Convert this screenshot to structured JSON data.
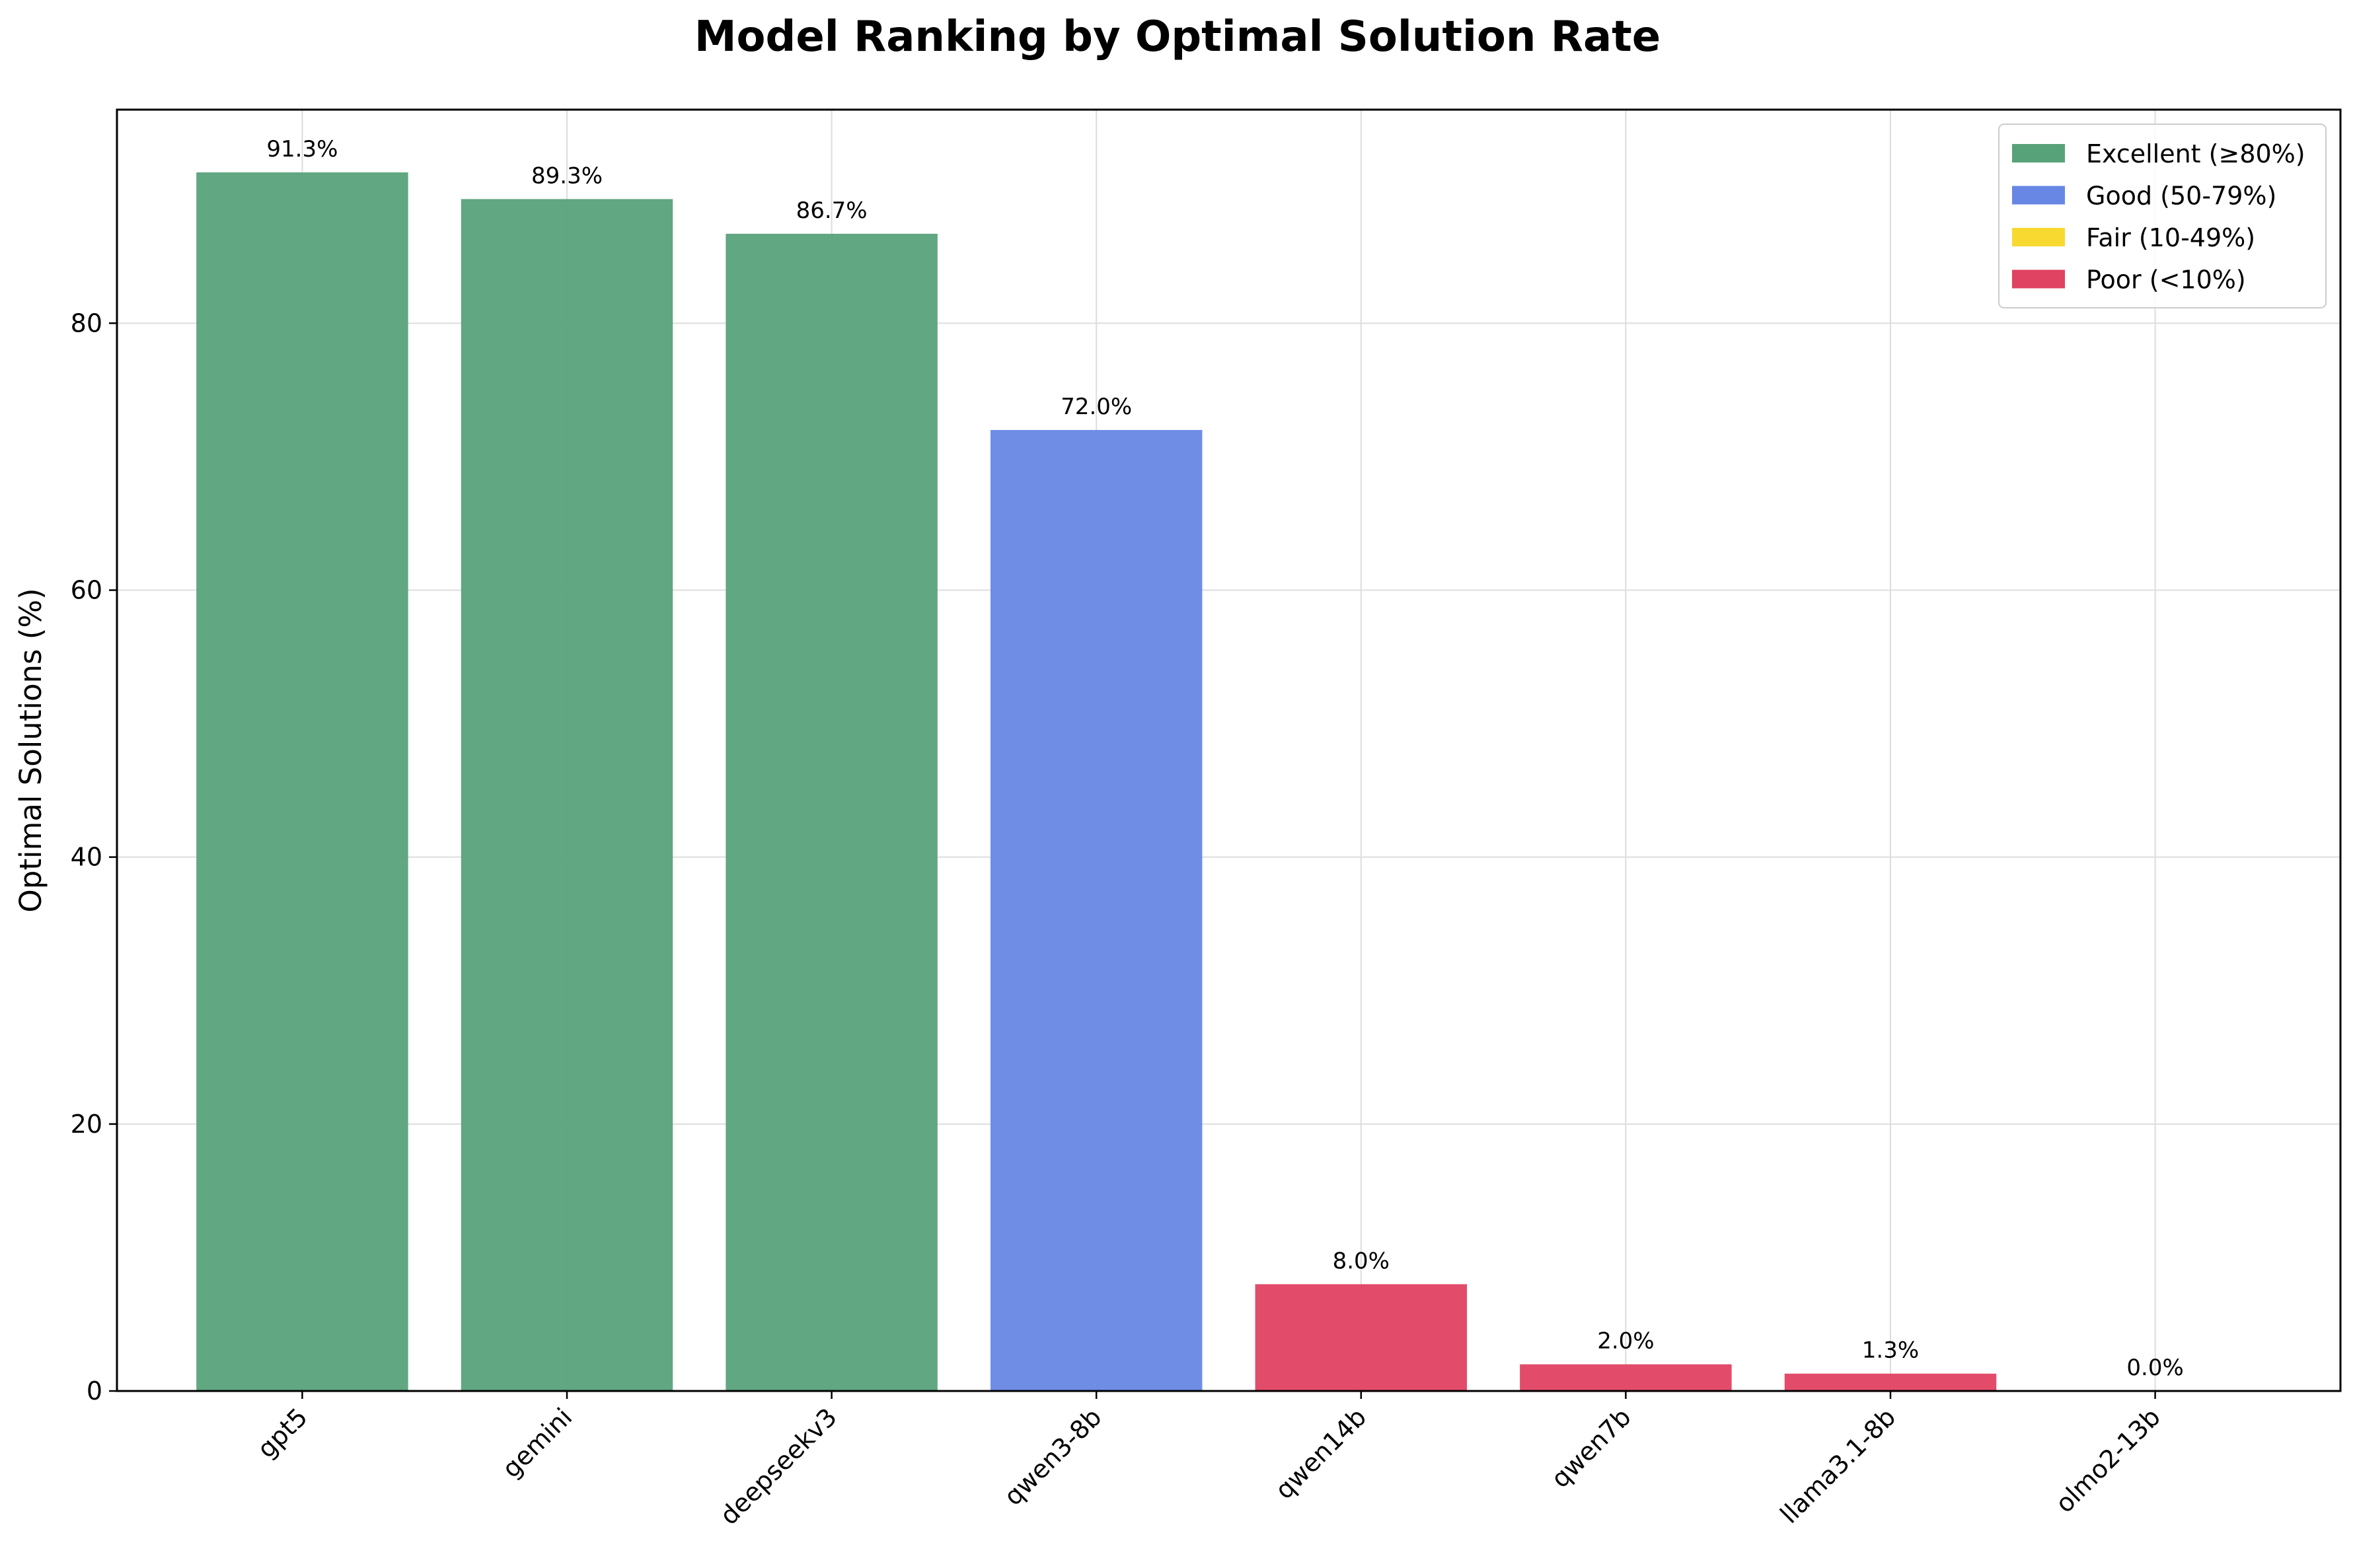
{
  "chart_data": {
    "type": "bar",
    "title": "Model Ranking by Optimal Solution Rate",
    "xlabel": "",
    "ylabel": "Optimal Solutions (%)",
    "ylim": [
      0,
      96
    ],
    "yticks": [
      0,
      20,
      40,
      60,
      80
    ],
    "grid": true,
    "legend_position": "top-right",
    "categories": [
      "gpt5",
      "gemini",
      "deepseekv3",
      "qwen3-8b",
      "qwen14b",
      "qwen7b",
      "llama3.1-8b",
      "olmo2-13b"
    ],
    "values": [
      91.3,
      89.3,
      86.7,
      72.0,
      8.0,
      2.0,
      1.3,
      0.0
    ],
    "value_labels": [
      "91.3%",
      "89.3%",
      "86.7%",
      "72.0%",
      "8.0%",
      "2.0%",
      "1.3%",
      "0.0%"
    ],
    "bar_groups": [
      "excellent",
      "excellent",
      "excellent",
      "good",
      "poor",
      "poor",
      "poor",
      "poor"
    ],
    "legend": [
      {
        "key": "excellent",
        "label": "Excellent (≥80%)",
        "color": "#58A27A"
      },
      {
        "key": "good",
        "label": "Good (50-79%)",
        "color": "#6887E5"
      },
      {
        "key": "fair",
        "label": "Fair (10-49%)",
        "color": "#F8D92F"
      },
      {
        "key": "poor",
        "label": "Poor (<10%)",
        "color": "#E04262"
      }
    ]
  }
}
